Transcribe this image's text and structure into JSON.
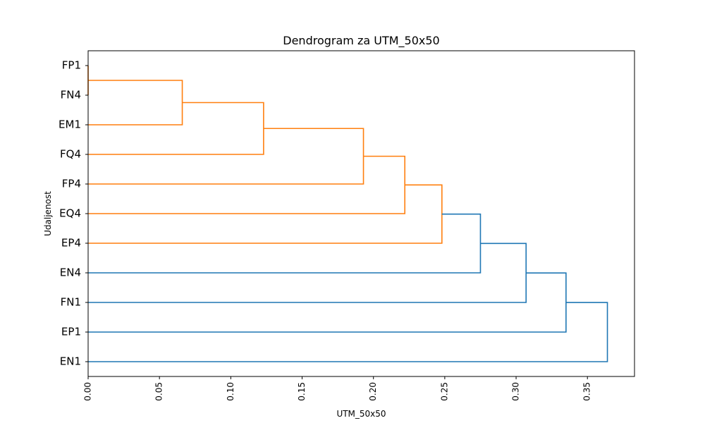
{
  "chart_data": {
    "type": "dendrogram",
    "orientation": "right",
    "title": "Dendrogram za UTM_50x50",
    "xlabel": "UTM_50x50",
    "ylabel": "Udaljenost",
    "xlim": [
      0,
      0.383
    ],
    "x_ticks": [
      0.0,
      0.05,
      0.1,
      0.15,
      0.2,
      0.25,
      0.3,
      0.35
    ],
    "x_tick_labels": [
      "0.00",
      "0.05",
      "0.10",
      "0.15",
      "0.20",
      "0.25",
      "0.30",
      "0.35"
    ],
    "leaves_top_to_bottom": [
      "FP1",
      "FN4",
      "EM1",
      "FQ4",
      "FP4",
      "EQ4",
      "EP4",
      "EN4",
      "FN1",
      "EP1",
      "EN1"
    ],
    "merges": [
      {
        "a": "FP1",
        "b": "FN4",
        "distance": 0.0,
        "color": "#ff7f0e"
      },
      {
        "a": "FP1+FN4",
        "b": "EM1",
        "distance": 0.066,
        "color": "#ff7f0e"
      },
      {
        "a": "FP1+FN4+EM1",
        "b": "FQ4",
        "distance": 0.123,
        "color": "#ff7f0e"
      },
      {
        "a": "FP1+FN4+EM1+FQ4",
        "b": "FP4",
        "distance": 0.193,
        "color": "#ff7f0e"
      },
      {
        "a": "...+FP4",
        "b": "EQ4",
        "distance": 0.222,
        "color": "#ff7f0e"
      },
      {
        "a": "...+EQ4",
        "b": "EP4",
        "distance": 0.248,
        "color": "#ff7f0e"
      },
      {
        "a": "...+EP4",
        "b": "EN4",
        "distance": 0.275,
        "color": "#1f77b4"
      },
      {
        "a": "...+EN4",
        "b": "FN1",
        "distance": 0.307,
        "color": "#1f77b4"
      },
      {
        "a": "...+FN1",
        "b": "EP1",
        "distance": 0.335,
        "color": "#1f77b4"
      },
      {
        "a": "...+EP1",
        "b": "EN1",
        "distance": 0.364,
        "color": "#1f77b4"
      }
    ],
    "colors": {
      "cluster": "#ff7f0e",
      "above_threshold": "#1f77b4"
    },
    "grid": false
  }
}
